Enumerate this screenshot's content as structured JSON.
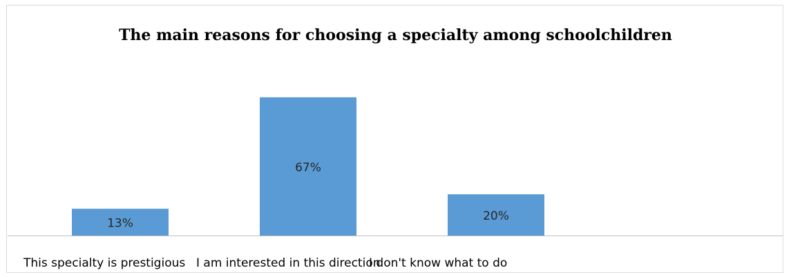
{
  "chart_data": {
    "type": "bar",
    "title": "The main reasons for choosing a specialty among schoolchildren",
    "categories": [
      "This specialty is prestigious",
      "I am interested in this direction",
      "I don't know what to do"
    ],
    "values": [
      13,
      67,
      20
    ],
    "data_labels": [
      "13%",
      "67%",
      "20%"
    ],
    "unit": "%",
    "ylim": [
      0,
      80
    ],
    "grid": false,
    "legend": "none",
    "colors": {
      "bar": "#5b9bd5",
      "bar_stroke": "#41719c",
      "axis": "#bfbfbf",
      "frame": "#d9d9d9",
      "text": "#000000",
      "label_text": "#262626"
    }
  }
}
